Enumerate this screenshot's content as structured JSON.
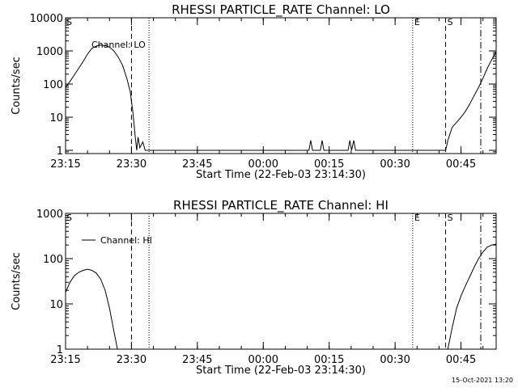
{
  "chart_data": [
    {
      "type": "line",
      "title": "RHESSI PARTICLE_RATE Channel: LO",
      "xlabel": "Start Time (22-Feb-03 23:14:30)",
      "ylabel": "Counts/sec",
      "yscale": "log",
      "ylim": [
        0.8,
        10000
      ],
      "xlim_minutes": [
        0,
        98
      ],
      "x_ticks": [
        {
          "minutes": 0,
          "label": "23:15"
        },
        {
          "minutes": 15,
          "label": "23:30"
        },
        {
          "minutes": 30,
          "label": "23:45"
        },
        {
          "minutes": 45,
          "label": "00:00"
        },
        {
          "minutes": 60,
          "label": "00:15"
        },
        {
          "minutes": 75,
          "label": "00:30"
        },
        {
          "minutes": 90,
          "label": "00:45"
        }
      ],
      "y_ticks": [
        {
          "value": 1,
          "label": "1"
        },
        {
          "value": 10,
          "label": "10"
        },
        {
          "value": 100,
          "label": "100"
        },
        {
          "value": 1000,
          "label": "1000"
        },
        {
          "value": 10000,
          "label": "10000"
        }
      ],
      "legend": {
        "label": "Channel: LO",
        "show_line": false
      },
      "series": [
        {
          "name": "Channel: LO",
          "points": [
            [
              0,
              80
            ],
            [
              1,
              120
            ],
            [
              2,
              190
            ],
            [
              3,
              300
            ],
            [
              4,
              480
            ],
            [
              5,
              800
            ],
            [
              6,
              1200
            ],
            [
              7,
              1400
            ],
            [
              8,
              1500
            ],
            [
              9,
              1450
            ],
            [
              10,
              1300
            ],
            [
              11,
              1000
            ],
            [
              12,
              650
            ],
            [
              13,
              360
            ],
            [
              14,
              140
            ],
            [
              14.7,
              60
            ],
            [
              15.3,
              15
            ],
            [
              15.8,
              3
            ],
            [
              16.2,
              1
            ],
            [
              16.5,
              2.5
            ],
            [
              16.9,
              1.2
            ],
            [
              17.6,
              1.8
            ],
            [
              18.1,
              1
            ],
            [
              55.4,
              1
            ],
            [
              55.8,
              2
            ],
            [
              56.2,
              1
            ],
            [
              58.0,
              1
            ],
            [
              58.4,
              2
            ],
            [
              58.8,
              1
            ],
            [
              64.3,
              1
            ],
            [
              64.7,
              2
            ],
            [
              65.1,
              1
            ],
            [
              65.6,
              2
            ],
            [
              66.0,
              1
            ],
            [
              86.5,
              1
            ],
            [
              87,
              2
            ],
            [
              88,
              5
            ],
            [
              89,
              7
            ],
            [
              90,
              10
            ],
            [
              91,
              15
            ],
            [
              92,
              25
            ],
            [
              93,
              45
            ],
            [
              94,
              80
            ],
            [
              95,
              150
            ],
            [
              96,
              300
            ],
            [
              97,
              550
            ],
            [
              98,
              950
            ]
          ]
        }
      ],
      "markers": [
        {
          "minutes": 15.0,
          "style": "dashed",
          "label": ""
        },
        {
          "minutes": 19.0,
          "style": "dotted",
          "label": ""
        },
        {
          "minutes": 79.0,
          "style": "dotted",
          "label": "E"
        },
        {
          "minutes": 86.5,
          "style": "dashed",
          "label": "S"
        },
        {
          "minutes": 94.5,
          "style": "dashdot",
          "label": ""
        }
      ],
      "corner_mark": "S"
    },
    {
      "type": "line",
      "title": "RHESSI PARTICLE_RATE Channel: HI",
      "xlabel": "Start Time (22-Feb-03 23:14:30)",
      "ylabel": "Counts/sec",
      "yscale": "log",
      "ylim": [
        1,
        1000
      ],
      "xlim_minutes": [
        0,
        98
      ],
      "x_ticks": [
        {
          "minutes": 0,
          "label": "23:15"
        },
        {
          "minutes": 15,
          "label": "23:30"
        },
        {
          "minutes": 30,
          "label": "23:45"
        },
        {
          "minutes": 45,
          "label": "00:00"
        },
        {
          "minutes": 60,
          "label": "00:15"
        },
        {
          "minutes": 75,
          "label": "00:30"
        },
        {
          "minutes": 90,
          "label": "00:45"
        }
      ],
      "y_ticks": [
        {
          "value": 1,
          "label": "1"
        },
        {
          "value": 10,
          "label": "10"
        },
        {
          "value": 100,
          "label": "100"
        },
        {
          "value": 1000,
          "label": "1000"
        }
      ],
      "legend": {
        "label": "Channel: HI",
        "show_line": true
      },
      "series": [
        {
          "name": "Channel: HI",
          "points": [
            [
              0,
              18
            ],
            [
              1,
              30
            ],
            [
              2,
              42
            ],
            [
              3,
              50
            ],
            [
              4,
              55
            ],
            [
              5,
              58
            ],
            [
              6,
              55
            ],
            [
              7,
              48
            ],
            [
              8,
              35
            ],
            [
              9,
              20
            ],
            [
              10,
              8
            ],
            [
              11,
              2.5
            ],
            [
              11.8,
              1
            ]
          ]
        },
        {
          "name": "Channel: HI",
          "points": [
            [
              87,
              1
            ],
            [
              88,
              3
            ],
            [
              89,
              8
            ],
            [
              90,
              15
            ],
            [
              91,
              25
            ],
            [
              92,
              40
            ],
            [
              93,
              65
            ],
            [
              94,
              100
            ],
            [
              95,
              140
            ],
            [
              96,
              180
            ],
            [
              97,
              200
            ],
            [
              98,
              210
            ]
          ]
        }
      ],
      "markers": [
        {
          "minutes": 15.0,
          "style": "dashed",
          "label": ""
        },
        {
          "minutes": 19.0,
          "style": "dotted",
          "label": ""
        },
        {
          "minutes": 79.0,
          "style": "dotted",
          "label": "E"
        },
        {
          "minutes": 86.5,
          "style": "dashed",
          "label": "S"
        },
        {
          "minutes": 94.5,
          "style": "dashdot",
          "label": ""
        }
      ],
      "corner_mark": "S"
    }
  ],
  "timestamp": "15-Oct-2021 13:20"
}
